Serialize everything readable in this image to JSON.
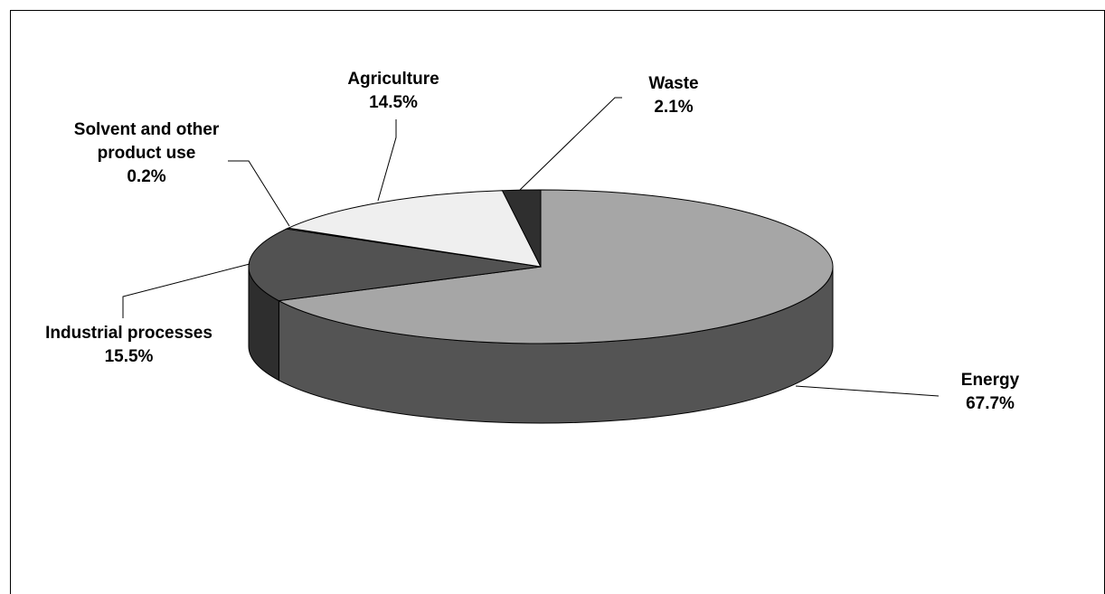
{
  "chart_data": {
    "type": "pie",
    "variant": "3d",
    "slices": [
      {
        "name": "Energy",
        "value": 67.7,
        "label": "67.7%",
        "color": "#a6a6a6",
        "side": "#545454"
      },
      {
        "name": "Industrial processes",
        "value": 15.5,
        "label": "15.5%",
        "color": "#525252",
        "side": "#2e2e2e"
      },
      {
        "name": "Solvent and other product use",
        "value": 0.2,
        "label": "0.2%",
        "color": "#888888",
        "side": "#555555"
      },
      {
        "name": "Agriculture",
        "value": 14.5,
        "label": "14.5%",
        "color": "#efefef",
        "side": "#bdbdbd"
      },
      {
        "name": "Waste",
        "value": 2.1,
        "label": "2.1%",
        "color": "#2f2f2f",
        "side": "#1c1c1c"
      }
    ]
  }
}
